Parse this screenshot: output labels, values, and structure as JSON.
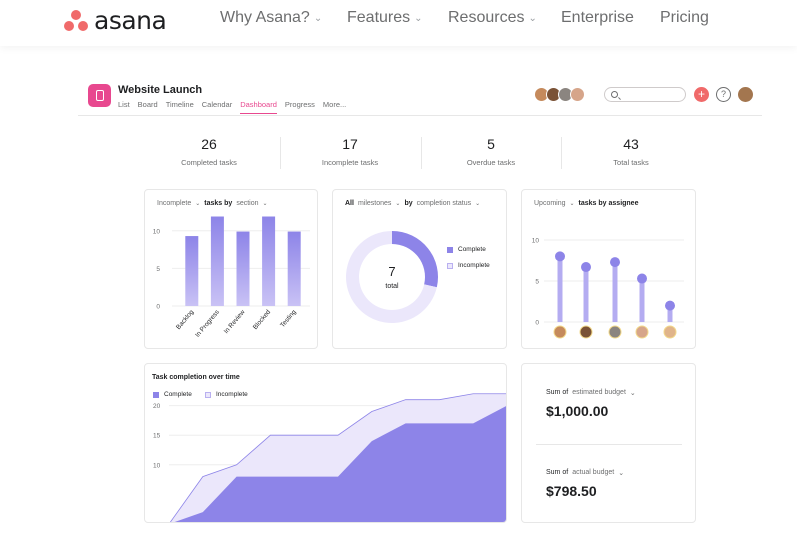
{
  "nav": {
    "brand": "asana",
    "links": [
      "Why Asana?",
      "Features",
      "Resources",
      "Enterprise",
      "Pricing"
    ],
    "chevron": "⌄"
  },
  "project": {
    "title": "Website Launch",
    "tabs": [
      "List",
      "Board",
      "Timeline",
      "Calendar",
      "Dashboard",
      "Progress",
      "More..."
    ],
    "active_tab": "Dashboard",
    "add_icon": "+",
    "help_icon": "?"
  },
  "stats": [
    {
      "value": "26",
      "label": "Completed tasks"
    },
    {
      "value": "17",
      "label": "Incomplete tasks"
    },
    {
      "value": "5",
      "label": "Overdue tasks"
    },
    {
      "value": "43",
      "label": "Total tasks"
    }
  ],
  "colors": {
    "brand_coral": "#f06a6a",
    "project_pink": "#e8488f",
    "bar_purple": "#8d84e8",
    "light_purple": "#ebe7fb"
  },
  "card_tasks_by_section": {
    "filter": "Incomplete",
    "bold": "tasks by",
    "group": "section"
  },
  "card_milestones": {
    "filter": "All",
    "mid": "milestones",
    "bold": "by",
    "group": "completion status",
    "center_value": "7",
    "center_label": "total",
    "legend": [
      "Complete",
      "Incomplete"
    ]
  },
  "card_upcoming": {
    "filter": "Upcoming",
    "bold": "tasks by assignee"
  },
  "card_completion": {
    "title": "Task completion over time",
    "legend": [
      "Complete",
      "Incomplete"
    ]
  },
  "budget": {
    "items": [
      {
        "sum": "Sum of",
        "field": "estimated budget",
        "value": "$1,000.00"
      },
      {
        "sum": "Sum of",
        "field": "actual budget",
        "value": "$798.50"
      }
    ]
  },
  "chart_data": [
    {
      "type": "bar",
      "categories": [
        "Backlog",
        "In Progress",
        "In Review",
        "Blocked",
        "Testing"
      ],
      "values": [
        9.3,
        11.9,
        9.9,
        11.9,
        9.9
      ],
      "yticks": [
        0,
        5,
        10
      ],
      "ylim": [
        0,
        12.5
      ]
    },
    {
      "type": "pie",
      "labels": [
        "Complete",
        "Incomplete"
      ],
      "values": [
        2,
        5
      ],
      "total": 7
    },
    {
      "type": "bar",
      "categories": [
        "Assignee 1",
        "Assignee 2",
        "Assignee 3",
        "Assignee 4",
        "Assignee 5"
      ],
      "values": [
        8,
        6.7,
        7.3,
        5.3,
        2
      ],
      "yticks": [
        0,
        5,
        10
      ],
      "ylim": [
        0,
        10
      ]
    },
    {
      "type": "area",
      "x": [
        0,
        1,
        2,
        3,
        4,
        5,
        6,
        7,
        8,
        9,
        10
      ],
      "series": [
        {
          "name": "Complete",
          "values": [
            0,
            2,
            8,
            8,
            8,
            8,
            14,
            17,
            17,
            17,
            20
          ]
        },
        {
          "name": "Incomplete",
          "values": [
            0,
            8,
            10,
            15,
            15,
            15,
            19,
            21,
            21,
            22,
            22
          ]
        }
      ],
      "yticks": [
        10,
        15,
        20
      ],
      "ylim": [
        0,
        25
      ]
    }
  ]
}
